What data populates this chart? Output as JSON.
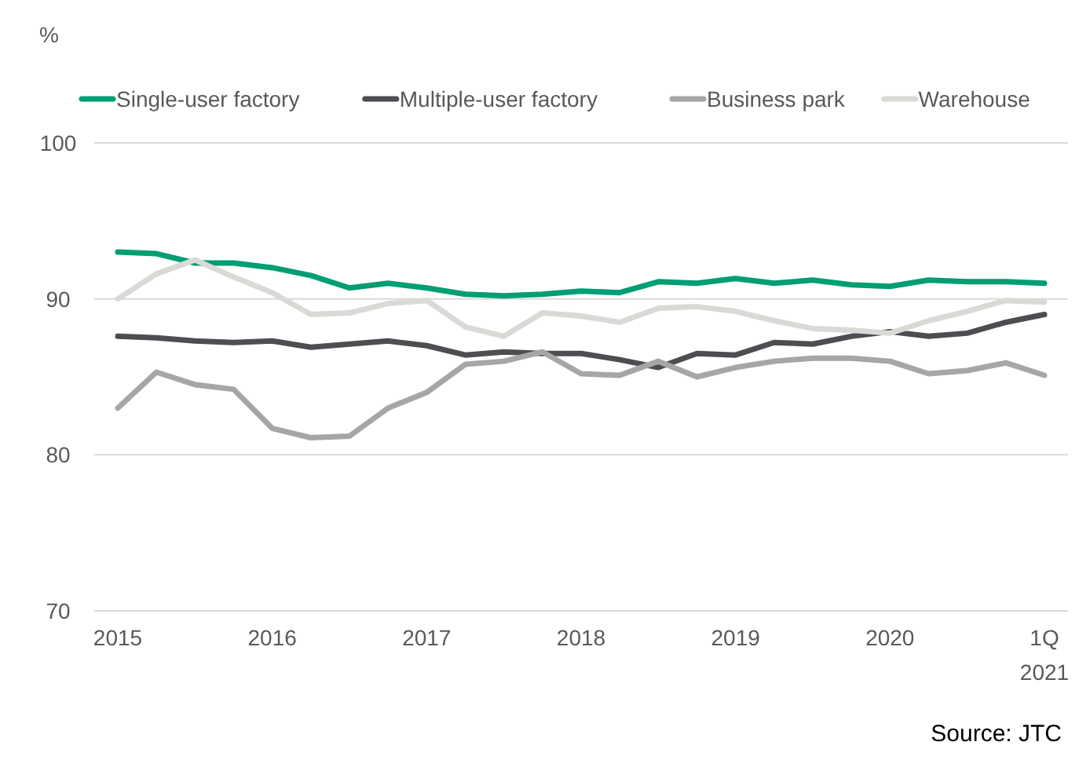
{
  "chart_data": {
    "type": "line",
    "ylabel": "%",
    "categories": [
      "2015",
      null,
      null,
      null,
      "2016",
      null,
      null,
      null,
      "2017",
      null,
      null,
      null,
      "2018",
      null,
      null,
      null,
      "2019",
      null,
      null,
      null,
      "2020",
      null,
      null,
      null,
      "1Q\n2021"
    ],
    "series": [
      {
        "name": "Single-user factory",
        "color": "#009e73",
        "values": [
          93.0,
          92.9,
          92.3,
          92.3,
          92.0,
          91.5,
          90.7,
          91.0,
          90.7,
          90.3,
          90.2,
          90.3,
          90.5,
          90.4,
          91.1,
          91.0,
          91.3,
          91.0,
          91.2,
          90.9,
          90.8,
          91.2,
          91.1,
          91.1,
          91.0
        ]
      },
      {
        "name": "Multiple-user factory",
        "color": "#4d4d52",
        "values": [
          87.6,
          87.5,
          87.3,
          87.2,
          87.3,
          86.9,
          87.1,
          87.3,
          87.0,
          86.4,
          86.6,
          86.5,
          86.5,
          86.1,
          85.6,
          86.5,
          86.4,
          87.2,
          87.1,
          87.6,
          87.9,
          87.6,
          87.8,
          88.5,
          89.0
        ]
      },
      {
        "name": "Business park",
        "color": "#a6a6a6",
        "values": [
          83.0,
          85.3,
          84.5,
          84.2,
          81.7,
          81.1,
          81.2,
          83.0,
          84.0,
          85.8,
          86.0,
          86.6,
          85.2,
          85.1,
          86.0,
          85.0,
          85.6,
          86.0,
          86.2,
          86.2,
          86.0,
          85.2,
          85.4,
          85.9,
          85.1
        ]
      },
      {
        "name": "Warehouse",
        "color": "#d9d9d6",
        "values": [
          90.0,
          91.6,
          92.5,
          91.4,
          90.4,
          89.0,
          89.1,
          89.7,
          89.9,
          88.2,
          87.6,
          89.1,
          88.9,
          88.5,
          89.4,
          89.5,
          89.2,
          88.6,
          88.1,
          88.0,
          87.8,
          88.6,
          89.2,
          89.9,
          89.8
        ]
      }
    ],
    "ylim": [
      70,
      100
    ],
    "yticks": [
      70,
      80,
      90,
      100
    ],
    "grid": "y",
    "legend": "top",
    "annotations": [
      "Source: JTC"
    ]
  }
}
